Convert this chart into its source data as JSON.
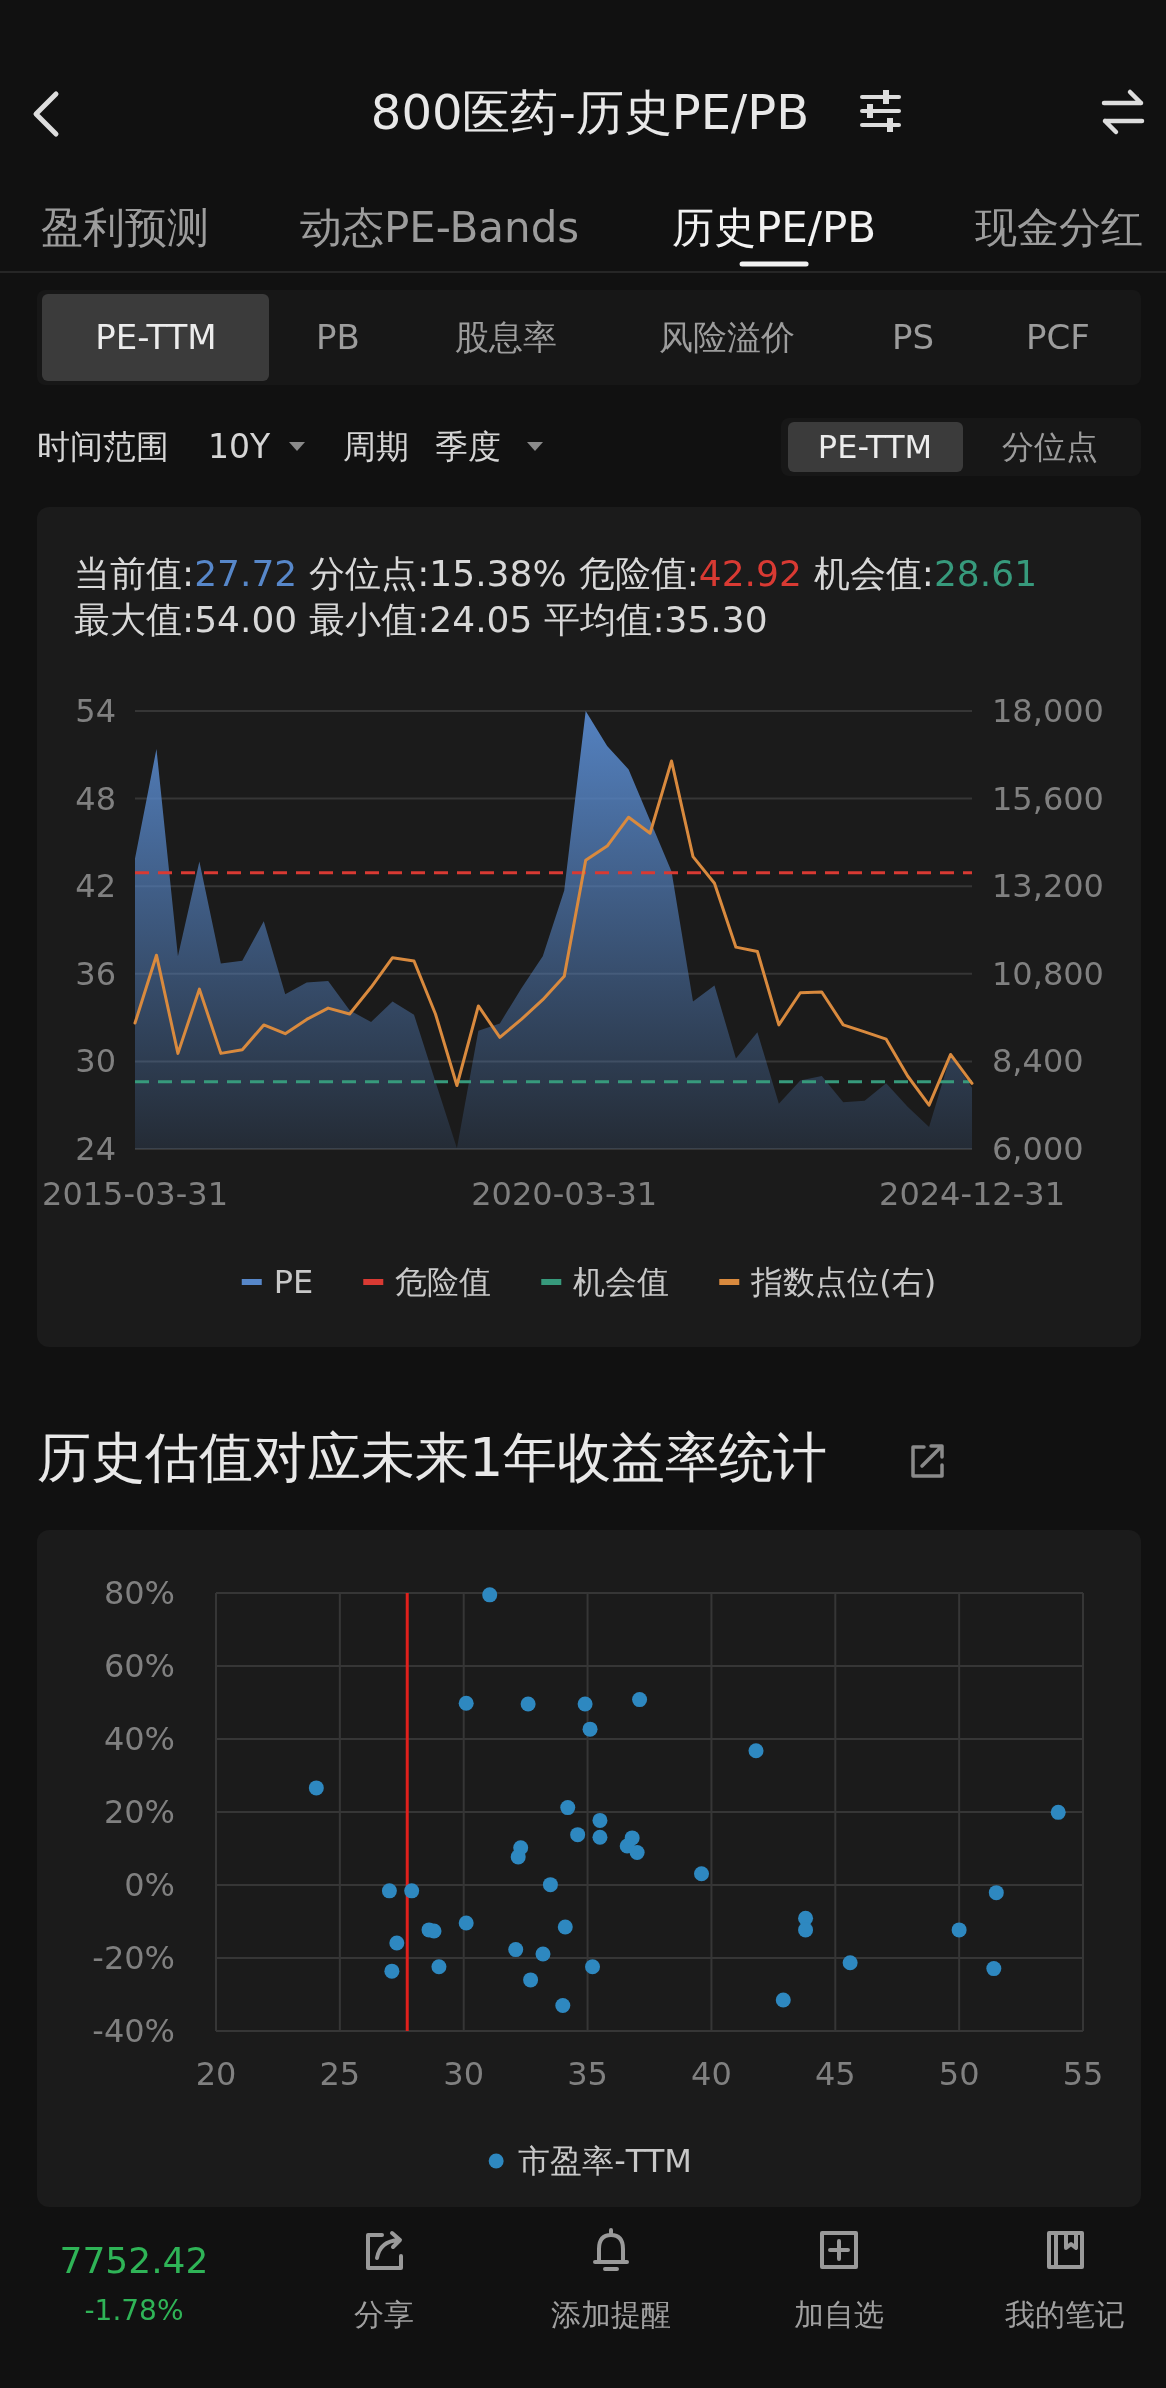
{
  "chart_data": [
    {
      "type": "other",
      "title": "800医药-历史PE/PB",
      "annotations": [
        "盈利预测",
        "动态PE-Bands",
        "历史PE/PB",
        "现金分红",
        "PE-TTM",
        "PB",
        "股息率",
        "风险溢价",
        "PS",
        "PCF",
        "时间范围",
        "10Y",
        "周期",
        "季度",
        "PE-TTM",
        "分位点"
      ]
    },
    {
      "type": "area",
      "annotations": [
        "当前值:27.72",
        "分位点:15.38%",
        "危险值:42.92",
        "机会值:28.61",
        "最大值:54.00",
        "最小值:24.05",
        "平均值:35.30"
      ],
      "categories": [
        "2015-03-31",
        null,
        null,
        null,
        null,
        null,
        null,
        null,
        null,
        null,
        null,
        null,
        null,
        null,
        null,
        null,
        null,
        null,
        null,
        null,
        "2020-03-31",
        null,
        null,
        null,
        null,
        null,
        null,
        null,
        null,
        null,
        null,
        null,
        null,
        null,
        null,
        null,
        null,
        null,
        null,
        "2024-12-31"
      ],
      "series": [
        {
          "name": "PE",
          "type": "area",
          "color": "#5787c9",
          "values": [
            43.9,
            51.4,
            37.2,
            43.7,
            36.7,
            36.9,
            39.6,
            34.6,
            35.4,
            35.5,
            33.5,
            32.7,
            34.1,
            33.2,
            28.6,
            24.05,
            32.1,
            32.6,
            35.0,
            37.2,
            41.7,
            54.0,
            51.6,
            50.0,
            46.5,
            43.0,
            34.1,
            35.2,
            30.2,
            32.0,
            27.1,
            28.7,
            29.0,
            27.2,
            27.3,
            28.5,
            26.9,
            25.5,
            30.4,
            28.2
          ]
        },
        {
          "name": "指数点位(右)",
          "type": "line",
          "axis": "y2",
          "color": "#d98a3e",
          "values": [
            9450,
            11310,
            8620,
            10380,
            8620,
            8720,
            9400,
            9160,
            9550,
            9860,
            9700,
            10430,
            11240,
            11150,
            9700,
            7740,
            9920,
            9060,
            9550,
            10090,
            10730,
            13910,
            14300,
            15090,
            14650,
            16630,
            14010,
            13280,
            11530,
            11410,
            9400,
            10280,
            10300,
            9400,
            9210,
            9010,
            8000,
            7200,
            8590,
            7800
          ]
        }
      ],
      "ref_lines": [
        {
          "axis": "y",
          "value": 42.92,
          "label": "危险值",
          "color": "#d93a33",
          "line_style": "dashed"
        },
        {
          "axis": "y",
          "value": 28.61,
          "label": "机会值",
          "color": "#379a7c",
          "line_style": "dashed"
        }
      ],
      "ylim": [
        24,
        54
      ],
      "yticks": [
        24,
        30,
        36,
        42,
        48,
        54
      ],
      "y2lim": [
        6000,
        18000
      ],
      "y2ticks": [
        {
          "value": 6000,
          "label": "6,000"
        },
        {
          "value": 8400,
          "label": "8,400"
        },
        {
          "value": 10800,
          "label": "10,800"
        },
        {
          "value": 13200,
          "label": "13,200"
        },
        {
          "value": 15600,
          "label": "15,600"
        },
        {
          "value": 18000,
          "label": "18,000"
        }
      ],
      "grid": "y",
      "legend": "bottom"
    },
    {
      "type": "scatter",
      "title": "历史估值对应未来1年收益率统计",
      "marker": "circle",
      "series": [
        {
          "name": "市盈率-TTM",
          "color": "#2e88c0",
          "x": [
            31.05,
            30.1,
            32.6,
            34.9,
            35.1,
            24.05,
            34.2,
            35.5,
            34.6,
            35.5,
            32.3,
            32.2,
            33.5,
            27.0,
            27.9,
            30.1,
            28.6,
            28.8,
            34.1,
            27.3,
            32.1,
            33.2,
            29.0,
            35.2,
            27.1,
            32.7,
            34.0,
            37.1,
            41.8,
            54.0,
            36.8,
            36.6,
            37.0,
            39.6,
            51.5,
            43.8,
            43.8,
            50.0,
            45.6,
            51.4,
            42.9
          ],
          "values": [
            79.5,
            49.8,
            49.6,
            49.6,
            42.7,
            26.6,
            21.2,
            17.7,
            13.8,
            13.1,
            10.2,
            7.7,
            0.1,
            -1.6,
            -1.6,
            -10.4,
            -12.3,
            -12.6,
            -11.5,
            -15.9,
            -17.7,
            -18.9,
            -22.4,
            -22.4,
            -23.6,
            -26.0,
            -33.0,
            50.8,
            36.8,
            19.9,
            12.9,
            10.7,
            8.9,
            3.1,
            -2.1,
            -9.1,
            -12.3,
            -12.3,
            -21.3,
            -22.9,
            -31.5
          ]
        }
      ],
      "xlim": [
        20,
        55
      ],
      "xticks": [
        20,
        25,
        30,
        35,
        40,
        45,
        50,
        55
      ],
      "ylim": [
        -40,
        80
      ],
      "yticks": [
        {
          "value": -40,
          "label": "-40%"
        },
        {
          "value": -20,
          "label": "-20%"
        },
        {
          "value": 0,
          "label": "0%"
        },
        {
          "value": 20,
          "label": "20%"
        },
        {
          "value": 40,
          "label": "40%"
        },
        {
          "value": 60,
          "label": "60%"
        },
        {
          "value": 80,
          "label": "80%"
        }
      ],
      "ref_lines": [
        {
          "axis": "x",
          "value": 27.72,
          "color": "#e0201c",
          "line_style": "solid"
        }
      ],
      "grid": true,
      "legend": "bottom"
    },
    {
      "type": "other",
      "annotations": [
        "7752.42",
        "-1.78%",
        "分享",
        "添加提醒",
        "加自选",
        "我的笔记"
      ]
    }
  ]
}
